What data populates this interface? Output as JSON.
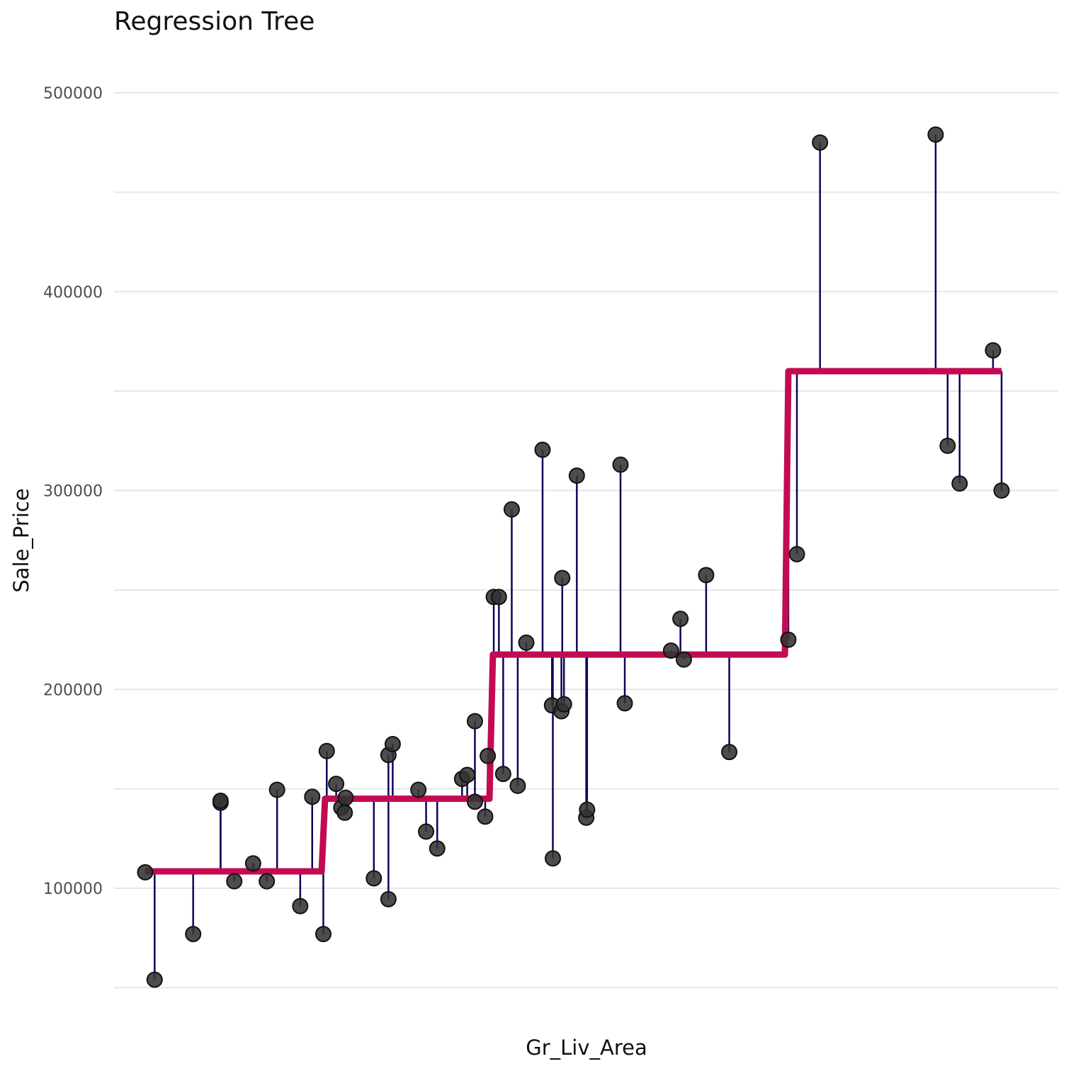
{
  "chart_data": {
    "type": "scatter",
    "title": "Regression Tree",
    "xlabel": "Gr_Liv_Area",
    "ylabel": "Sale_Price",
    "ylim": [
      45000,
      520000
    ],
    "y_ticks": [
      100000,
      200000,
      300000,
      400000,
      500000
    ],
    "x_ticks_shown": false,
    "grid": true,
    "point_color": "#333333",
    "residual_color": "#0b0659",
    "fit_color": "#c20b52",
    "points": [
      {
        "x": 0.0,
        "y": 108000
      },
      {
        "x": 0.011,
        "y": 54000
      },
      {
        "x": 0.056,
        "y": 77000
      },
      {
        "x": 0.088,
        "y": 143000
      },
      {
        "x": 0.088,
        "y": 144000
      },
      {
        "x": 0.104,
        "y": 103500
      },
      {
        "x": 0.126,
        "y": 112500
      },
      {
        "x": 0.142,
        "y": 103500
      },
      {
        "x": 0.154,
        "y": 149500
      },
      {
        "x": 0.181,
        "y": 91000
      },
      {
        "x": 0.195,
        "y": 146000
      },
      {
        "x": 0.208,
        "y": 77000
      },
      {
        "x": 0.212,
        "y": 169000
      },
      {
        "x": 0.223,
        "y": 152500
      },
      {
        "x": 0.229,
        "y": 140500
      },
      {
        "x": 0.233,
        "y": 138000
      },
      {
        "x": 0.234,
        "y": 145500
      },
      {
        "x": 0.267,
        "y": 105000
      },
      {
        "x": 0.284,
        "y": 167000
      },
      {
        "x": 0.284,
        "y": 94500
      },
      {
        "x": 0.289,
        "y": 172500
      },
      {
        "x": 0.319,
        "y": 149500
      },
      {
        "x": 0.328,
        "y": 128500
      },
      {
        "x": 0.341,
        "y": 120000
      },
      {
        "x": 0.37,
        "y": 155000
      },
      {
        "x": 0.376,
        "y": 157000
      },
      {
        "x": 0.385,
        "y": 143500
      },
      {
        "x": 0.385,
        "y": 184000
      },
      {
        "x": 0.397,
        "y": 136000
      },
      {
        "x": 0.4,
        "y": 166500
      },
      {
        "x": 0.407,
        "y": 246500
      },
      {
        "x": 0.413,
        "y": 246500
      },
      {
        "x": 0.418,
        "y": 157500
      },
      {
        "x": 0.428,
        "y": 290500
      },
      {
        "x": 0.435,
        "y": 151500
      },
      {
        "x": 0.445,
        "y": 223500
      },
      {
        "x": 0.464,
        "y": 320500
      },
      {
        "x": 0.475,
        "y": 192000
      },
      {
        "x": 0.476,
        "y": 115000
      },
      {
        "x": 0.486,
        "y": 189000
      },
      {
        "x": 0.487,
        "y": 256000
      },
      {
        "x": 0.489,
        "y": 192500
      },
      {
        "x": 0.504,
        "y": 307500
      },
      {
        "x": 0.515,
        "y": 135500
      },
      {
        "x": 0.516,
        "y": 139500
      },
      {
        "x": 0.555,
        "y": 313000
      },
      {
        "x": 0.56,
        "y": 193000
      },
      {
        "x": 0.614,
        "y": 219500
      },
      {
        "x": 0.625,
        "y": 235500
      },
      {
        "x": 0.629,
        "y": 215000
      },
      {
        "x": 0.655,
        "y": 257500
      },
      {
        "x": 0.682,
        "y": 168500
      },
      {
        "x": 0.751,
        "y": 225000
      },
      {
        "x": 0.761,
        "y": 268000
      },
      {
        "x": 0.788,
        "y": 475000
      },
      {
        "x": 0.923,
        "y": 479000
      },
      {
        "x": 0.937,
        "y": 322500
      },
      {
        "x": 0.951,
        "y": 303500
      },
      {
        "x": 0.99,
        "y": 370500
      },
      {
        "x": 1.0,
        "y": 300000
      }
    ],
    "fit_steps": [
      {
        "x_start": 0.0,
        "x_end": 0.206,
        "y": 108500
      },
      {
        "x_start": 0.21,
        "x_end": 0.402,
        "y": 145000
      },
      {
        "x_start": 0.406,
        "x_end": 0.747,
        "y": 217500
      },
      {
        "x_start": 0.751,
        "x_end": 1.0,
        "y": 360000
      }
    ]
  }
}
